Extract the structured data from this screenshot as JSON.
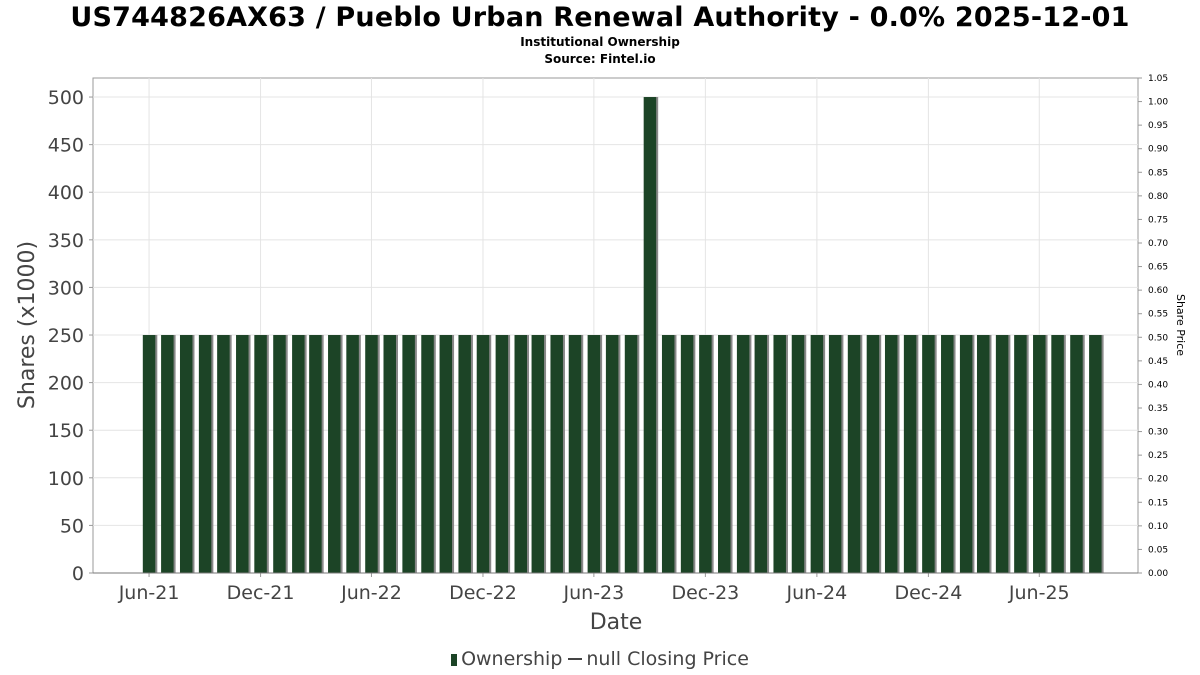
{
  "chart_data": {
    "type": "bar",
    "title": "US744826AX63 / Pueblo Urban Renewal Authority - 0.0% 2025-12-01",
    "subtitle_lines": [
      "Institutional Ownership",
      "Source: Fintel.io"
    ],
    "xlabel": "Date",
    "ylabel": "Shares (x1000)",
    "y2label": "Share Price",
    "ylim": [
      0,
      520
    ],
    "y2lim": [
      0,
      1.05
    ],
    "yticks": [
      0,
      50,
      100,
      150,
      200,
      250,
      300,
      350,
      400,
      450,
      500
    ],
    "y2ticks": [
      "0.00",
      "0.05",
      "0.10",
      "0.15",
      "0.20",
      "0.25",
      "0.30",
      "0.35",
      "0.40",
      "0.45",
      "0.50",
      "0.55",
      "0.60",
      "0.65",
      "0.70",
      "0.75",
      "0.80",
      "0.85",
      "0.90",
      "0.95",
      "1.00",
      "1.05"
    ],
    "xlim": [
      "2021-03-01",
      "2025-11-10"
    ],
    "xticks": [
      "2021-06-01",
      "2021-12-01",
      "2022-06-01",
      "2022-12-01",
      "2023-06-01",
      "2023-12-01",
      "2024-06-01",
      "2024-12-01",
      "2025-06-01"
    ],
    "xtick_labels": [
      "Jun-21",
      "Dec-21",
      "Jun-22",
      "Dec-22",
      "Jun-23",
      "Dec-23",
      "Jun-24",
      "Dec-24",
      "Jun-25"
    ],
    "grid": true,
    "legend_position": "bottom",
    "series": [
      {
        "name": "Ownership",
        "color": "#1c4426",
        "x": [
          "2021-06-01",
          "2021-07-01",
          "2021-08-01",
          "2021-09-01",
          "2021-10-01",
          "2021-11-01",
          "2021-12-01",
          "2022-01-01",
          "2022-02-01",
          "2022-03-01",
          "2022-04-01",
          "2022-05-01",
          "2022-06-01",
          "2022-07-01",
          "2022-08-01",
          "2022-09-01",
          "2022-10-01",
          "2022-11-01",
          "2022-12-01",
          "2023-01-01",
          "2023-02-01",
          "2023-03-01",
          "2023-04-01",
          "2023-05-01",
          "2023-06-01",
          "2023-07-01",
          "2023-08-01",
          "2023-09-01",
          "2023-10-01",
          "2023-11-01",
          "2023-12-01",
          "2024-01-01",
          "2024-02-01",
          "2024-03-01",
          "2024-04-01",
          "2024-05-01",
          "2024-06-01",
          "2024-07-01",
          "2024-08-01",
          "2024-09-01",
          "2024-10-01",
          "2024-11-01",
          "2024-12-01",
          "2025-01-01",
          "2025-02-01",
          "2025-03-01",
          "2025-04-01",
          "2025-05-01",
          "2025-06-01",
          "2025-07-01",
          "2025-08-01",
          "2025-09-01"
        ],
        "values": [
          250,
          250,
          250,
          250,
          250,
          250,
          250,
          250,
          250,
          250,
          250,
          250,
          250,
          250,
          250,
          250,
          250,
          250,
          250,
          250,
          250,
          250,
          250,
          250,
          250,
          250,
          250,
          500,
          250,
          250,
          250,
          250,
          250,
          250,
          250,
          250,
          250,
          250,
          250,
          250,
          250,
          250,
          250,
          250,
          250,
          250,
          250,
          250,
          250,
          250,
          250,
          250
        ]
      },
      {
        "name": "null Closing Price",
        "color": "#444444",
        "values": []
      }
    ]
  },
  "legend": {
    "ownership_label": "Ownership",
    "price_label": "null Closing Price"
  }
}
